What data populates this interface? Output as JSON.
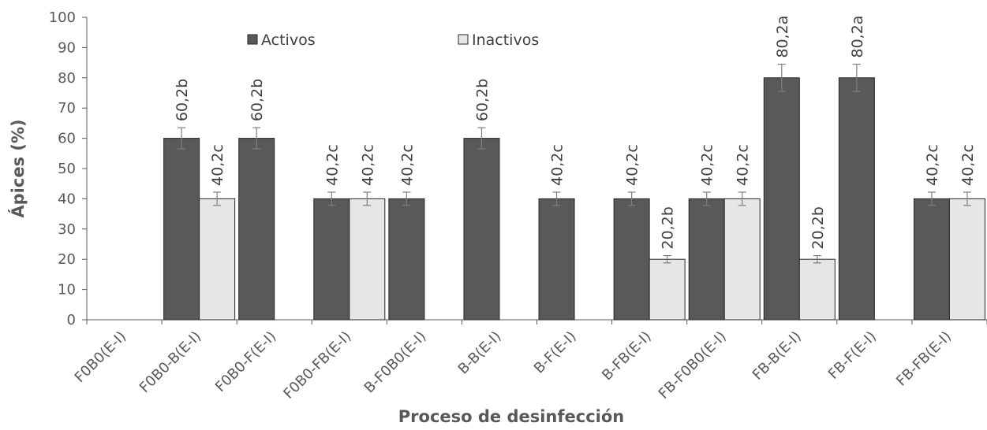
{
  "chart_data": {
    "type": "bar",
    "title": "",
    "xlabel": "Proceso de desinfección",
    "ylabel": "Ápices (%)",
    "ylim": [
      0,
      100
    ],
    "yticks": [
      0,
      10,
      20,
      30,
      40,
      50,
      60,
      70,
      80,
      90,
      100
    ],
    "grid": false,
    "legend_position": "top-center",
    "categories": [
      "F0B0(E-I)",
      "F0B0-B(E-I)",
      "F0B0-F(E-I)",
      "F0B0-FB(E-I)",
      "B-F0B0(E-I)",
      "B-B(E-I)",
      "B-F(E-I)",
      "B-FB(E-I)",
      "FB-F0B0(E-I)",
      "FB-B(E-I)",
      "FB-F(E-I)",
      "FB-FB(E-I)"
    ],
    "series": [
      {
        "name": "Activos",
        "color": "#595959",
        "values": [
          0,
          60,
          60,
          40,
          40,
          60,
          40,
          40,
          40,
          80,
          80,
          40
        ],
        "errors": [
          0,
          3.5,
          3.5,
          2.2,
          2.2,
          3.5,
          2.2,
          2.2,
          2.2,
          4.5,
          4.5,
          2.2
        ],
        "labels": [
          "",
          "60,2b",
          "60,2b",
          "40,2c",
          "40,2c",
          "60,2b",
          "40,2c",
          "40,2c",
          "40,2c",
          "80,2a",
          "80,2a",
          "40,2c"
        ]
      },
      {
        "name": "Inactivos",
        "color": "#e6e6e6",
        "values": [
          0,
          40,
          0,
          40,
          0,
          0,
          0,
          20,
          40,
          20,
          0,
          40
        ],
        "errors": [
          0,
          2.2,
          0,
          2.2,
          0,
          0,
          0,
          1.2,
          2.2,
          1.2,
          0,
          2.2
        ],
        "labels": [
          "",
          "40,2c",
          "",
          "40,2c",
          "",
          "",
          "",
          "20,2b",
          "40,2c",
          "20,2b",
          "",
          "40,2c"
        ]
      }
    ]
  }
}
